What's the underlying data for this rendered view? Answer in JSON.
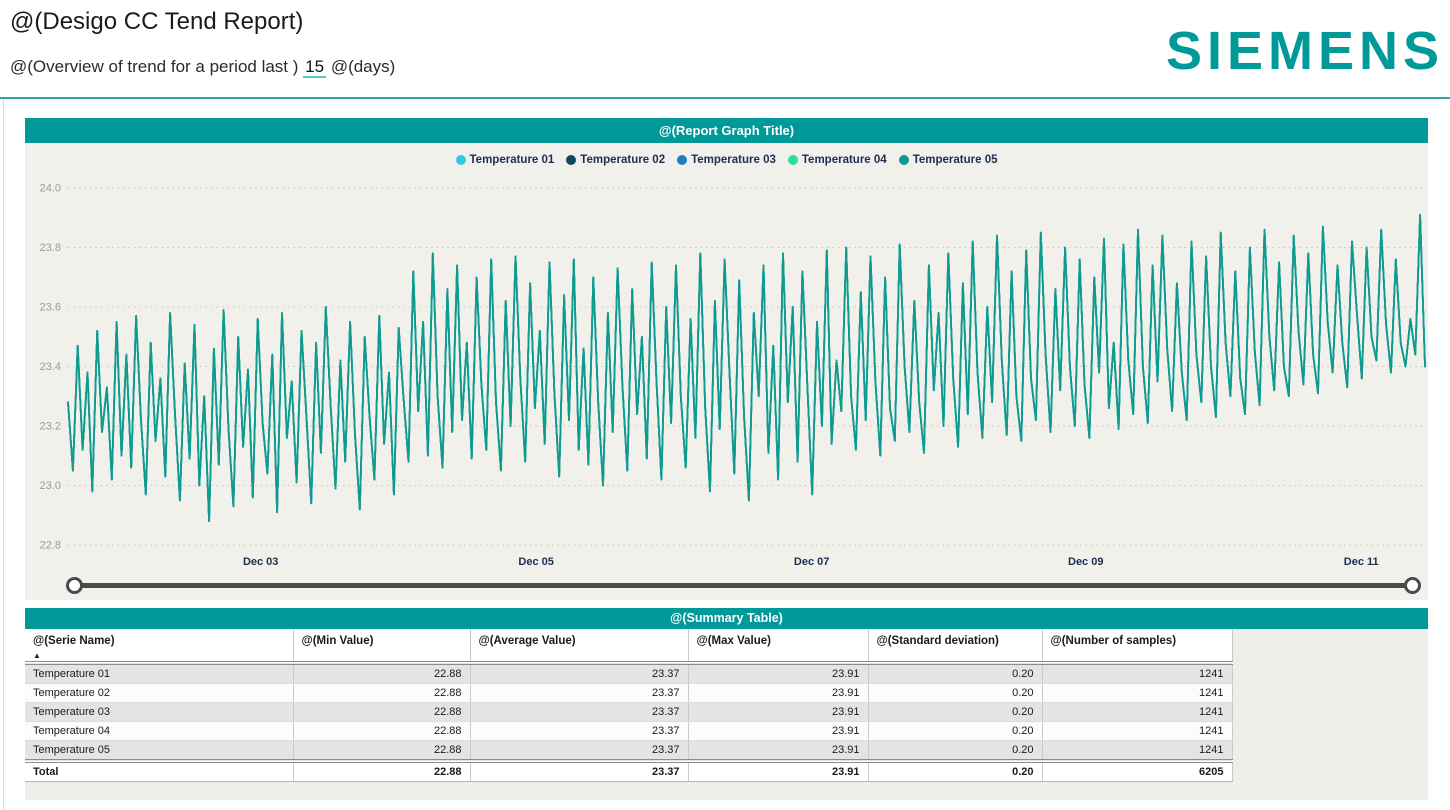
{
  "header": {
    "title": "@(Desigo CC Tend Report)",
    "subtitle_prefix": "@(Overview of trend for a period last )",
    "days_value": "15",
    "subtitle_suffix": "@(days)",
    "brand": "SIEMENS",
    "brand_color": "#009999"
  },
  "chart_panel": {
    "title": "@(Report Graph Title)"
  },
  "chart_data": {
    "type": "line",
    "title": "@(Report Graph Title)",
    "xlabel": "",
    "ylabel": "",
    "ylim": [
      22.8,
      24.0
    ],
    "y_ticks": [
      "24.0",
      "23.8",
      "23.6",
      "23.4",
      "23.2",
      "23.0",
      "22.8"
    ],
    "x_ticks": [
      {
        "label": "Dec 03",
        "f": 0.142
      },
      {
        "label": "Dec 05",
        "f": 0.345
      },
      {
        "label": "Dec 07",
        "f": 0.548
      },
      {
        "label": "Dec 09",
        "f": 0.75
      },
      {
        "label": "Dec 11",
        "f": 0.953
      }
    ],
    "grid": "horizontal-dotted",
    "legend_position": "top-center",
    "series": [
      {
        "name": "Temperature 01",
        "color": "#38c6e8"
      },
      {
        "name": "Temperature 02",
        "color": "#10485c"
      },
      {
        "name": "Temperature 03",
        "color": "#1f7fbe"
      },
      {
        "name": "Temperature 04",
        "color": "#2fd9a4"
      },
      {
        "name": "Temperature 05",
        "color": "#0f9a90"
      }
    ],
    "series_note": "All five series overlap exactly; the teal Temperature 05 trace drawn last is the visible one. Values range 22.88-23.91, mean 23.37.",
    "values_shared_by_all_series": [
      23.28,
      23.05,
      23.47,
      23.12,
      23.38,
      22.98,
      23.52,
      23.18,
      23.33,
      23.02,
      23.55,
      23.1,
      23.44,
      23.06,
      23.57,
      23.22,
      22.97,
      23.48,
      23.15,
      23.36,
      23.03,
      23.58,
      23.24,
      22.95,
      23.41,
      23.09,
      23.54,
      23.0,
      23.3,
      22.88,
      23.46,
      23.07,
      23.59,
      23.19,
      22.93,
      23.5,
      23.13,
      23.39,
      22.96,
      23.56,
      23.21,
      23.04,
      23.44,
      22.91,
      23.58,
      23.16,
      23.35,
      23.01,
      23.52,
      23.24,
      22.94,
      23.48,
      23.11,
      23.6,
      23.27,
      22.99,
      23.42,
      23.08,
      23.55,
      23.17,
      22.92,
      23.5,
      23.23,
      23.02,
      23.57,
      23.14,
      23.38,
      22.97,
      23.53,
      23.29,
      23.08,
      23.72,
      23.25,
      23.55,
      23.1,
      23.78,
      23.3,
      23.06,
      23.66,
      23.18,
      23.74,
      23.22,
      23.48,
      23.09,
      23.7,
      23.34,
      23.12,
      23.76,
      23.28,
      23.05,
      23.62,
      23.2,
      23.77,
      23.36,
      23.08,
      23.68,
      23.26,
      23.52,
      23.14,
      23.75,
      23.31,
      23.03,
      23.64,
      23.22,
      23.76,
      23.12,
      23.46,
      23.07,
      23.7,
      23.28,
      23.0,
      23.58,
      23.18,
      23.73,
      23.33,
      23.05,
      23.66,
      23.24,
      23.5,
      23.09,
      23.75,
      23.35,
      23.02,
      23.6,
      23.21,
      23.74,
      23.3,
      23.06,
      23.56,
      23.16,
      23.78,
      23.26,
      22.98,
      23.62,
      23.19,
      23.76,
      23.38,
      23.04,
      23.69,
      23.23,
      22.95,
      23.58,
      23.3,
      23.74,
      23.11,
      23.47,
      23.02,
      23.78,
      23.28,
      23.6,
      23.08,
      23.72,
      23.34,
      22.97,
      23.55,
      23.2,
      23.79,
      23.14,
      23.42,
      23.25,
      23.8,
      23.3,
      23.12,
      23.65,
      23.22,
      23.77,
      23.35,
      23.1,
      23.7,
      23.26,
      23.15,
      23.81,
      23.4,
      23.18,
      23.62,
      23.28,
      23.11,
      23.74,
      23.32,
      23.58,
      23.2,
      23.78,
      23.36,
      23.13,
      23.68,
      23.24,
      23.82,
      23.38,
      23.16,
      23.6,
      23.28,
      23.84,
      23.42,
      23.17,
      23.72,
      23.3,
      23.15,
      23.79,
      23.36,
      23.22,
      23.85,
      23.44,
      23.18,
      23.66,
      23.32,
      23.8,
      23.4,
      23.2,
      23.76,
      23.34,
      23.16,
      23.7,
      23.38,
      23.83,
      23.26,
      23.48,
      23.19,
      23.81,
      23.42,
      23.24,
      23.86,
      23.4,
      23.21,
      23.74,
      23.35,
      23.84,
      23.46,
      23.25,
      23.68,
      23.38,
      23.22,
      23.82,
      23.44,
      23.28,
      23.77,
      23.4,
      23.23,
      23.85,
      23.48,
      23.3,
      23.72,
      23.36,
      23.24,
      23.8,
      23.45,
      23.27,
      23.86,
      23.5,
      23.32,
      23.75,
      23.4,
      23.3,
      23.84,
      23.52,
      23.34,
      23.78,
      23.44,
      23.31,
      23.87,
      23.55,
      23.38,
      23.74,
      23.48,
      23.33,
      23.82,
      23.58,
      23.36,
      23.8,
      23.5,
      23.42,
      23.86,
      23.54,
      23.38,
      23.76,
      23.48,
      23.4,
      23.56,
      23.44,
      23.91,
      23.4
    ]
  },
  "summary_panel": {
    "title": "@(Summary Table)",
    "sort_icon": "▲",
    "columns": [
      "@(Serie Name)",
      "@(Min Value)",
      "@(Average Value)",
      "@(Max Value)",
      "@(Standard deviation)",
      "@(Number of samples)"
    ],
    "rows": [
      {
        "name": "Temperature 01",
        "min": "22.88",
        "avg": "23.37",
        "max": "23.91",
        "std": "0.20",
        "samples": "1241"
      },
      {
        "name": "Temperature 02",
        "min": "22.88",
        "avg": "23.37",
        "max": "23.91",
        "std": "0.20",
        "samples": "1241"
      },
      {
        "name": "Temperature 03",
        "min": "22.88",
        "avg": "23.37",
        "max": "23.91",
        "std": "0.20",
        "samples": "1241"
      },
      {
        "name": "Temperature 04",
        "min": "22.88",
        "avg": "23.37",
        "max": "23.91",
        "std": "0.20",
        "samples": "1241"
      },
      {
        "name": "Temperature 05",
        "min": "22.88",
        "avg": "23.37",
        "max": "23.91",
        "std": "0.20",
        "samples": "1241"
      }
    ],
    "total": {
      "name": "Total",
      "min": "22.88",
      "avg": "23.37",
      "max": "23.91",
      "std": "0.20",
      "samples": "6205"
    }
  }
}
